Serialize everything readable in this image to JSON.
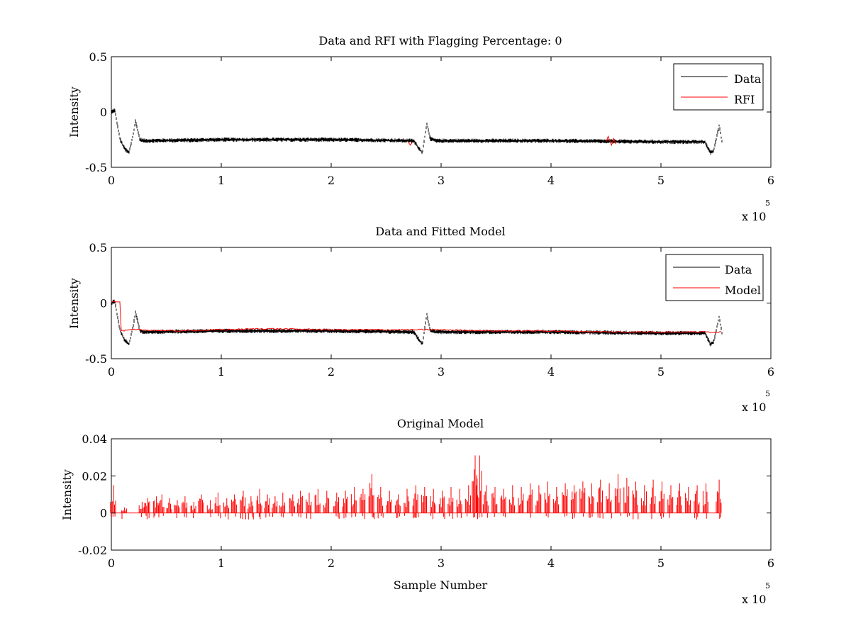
{
  "figure": {
    "background": "#ffffff",
    "data_color": "#000000",
    "model_color": "#ff0000"
  },
  "chart_data": [
    {
      "type": "line",
      "title": "Data and RFI with Flagging Percentage: 0",
      "xlabel": "",
      "ylabel": "Intensity",
      "xlim": [
        0,
        600000
      ],
      "ylim": [
        -0.5,
        0.5
      ],
      "x_ticks": [
        0,
        1,
        2,
        3,
        4,
        5,
        6
      ],
      "y_ticks": [
        "-0.5",
        "0",
        "0.5"
      ],
      "x_multiplier": {
        "base": "x 10",
        "exponent": "5"
      },
      "grid": false,
      "legend": {
        "placement": "top-right",
        "entries": [
          {
            "label": "Data",
            "color": "#000000"
          },
          {
            "label": "RFI",
            "color": "#ff0000"
          }
        ]
      },
      "series": [
        {
          "name": "Data",
          "color": "#000000",
          "x": [
            0,
            3000,
            8000,
            12000,
            16000,
            20000,
            22000,
            26000,
            30000,
            100000,
            200000,
            275000,
            280000,
            283000,
            287000,
            290000,
            295000,
            400000,
            500000,
            540000,
            545000,
            548000,
            553000,
            556000
          ],
          "y": [
            0,
            0.02,
            -0.25,
            -0.33,
            -0.37,
            -0.2,
            -0.08,
            -0.25,
            -0.26,
            -0.25,
            -0.25,
            -0.26,
            -0.33,
            -0.37,
            -0.1,
            -0.24,
            -0.26,
            -0.26,
            -0.27,
            -0.27,
            -0.37,
            -0.35,
            -0.12,
            -0.3
          ],
          "noise_band": 0.04
        },
        {
          "name": "RFI",
          "color": "#ff0000",
          "x": [
            270000,
            272000,
            274000,
            450000,
            452000,
            455000,
            457000,
            459000
          ],
          "y": [
            -0.27,
            -0.3,
            -0.27,
            -0.27,
            -0.22,
            -0.3,
            -0.24,
            -0.29
          ]
        }
      ]
    },
    {
      "type": "line",
      "title": "Data and Fitted Model",
      "xlabel": "",
      "ylabel": "Intensity",
      "xlim": [
        0,
        600000
      ],
      "ylim": [
        -0.5,
        0.5
      ],
      "x_ticks": [
        0,
        1,
        2,
        3,
        4,
        5,
        6
      ],
      "y_ticks": [
        "-0.5",
        "0",
        "0.5"
      ],
      "x_multiplier": {
        "base": "x 10",
        "exponent": "5"
      },
      "grid": false,
      "legend": {
        "placement": "top-right",
        "entries": [
          {
            "label": "Data",
            "color": "#000000"
          },
          {
            "label": "Model",
            "color": "#ff0000"
          }
        ]
      },
      "series": [
        {
          "name": "Data",
          "color": "#000000",
          "x": [
            0,
            3000,
            8000,
            12000,
            16000,
            20000,
            22000,
            26000,
            30000,
            100000,
            200000,
            275000,
            280000,
            283000,
            287000,
            290000,
            295000,
            400000,
            500000,
            540000,
            545000,
            548000,
            553000,
            556000
          ],
          "y": [
            0,
            0.02,
            -0.25,
            -0.33,
            -0.37,
            -0.2,
            -0.08,
            -0.25,
            -0.26,
            -0.25,
            -0.25,
            -0.26,
            -0.33,
            -0.37,
            -0.1,
            -0.24,
            -0.26,
            -0.26,
            -0.27,
            -0.27,
            -0.37,
            -0.35,
            -0.12,
            -0.3
          ],
          "noise_band": 0.04
        },
        {
          "name": "Model",
          "color": "#ff0000",
          "x": [
            0,
            1500,
            3000,
            8000,
            8500,
            9000,
            20000,
            60000,
            100000,
            140000,
            200000,
            280000,
            300000,
            350000,
            400000,
            450000,
            500000,
            556000
          ],
          "y": [
            0,
            0.02,
            0.01,
            0.01,
            -0.24,
            -0.25,
            -0.24,
            -0.25,
            -0.24,
            -0.23,
            -0.24,
            -0.24,
            -0.24,
            -0.25,
            -0.25,
            -0.26,
            -0.26,
            -0.26
          ]
        }
      ]
    },
    {
      "type": "line",
      "title": "Original Model",
      "xlabel": "Sample Number",
      "ylabel": "Intensity",
      "xlim": [
        0,
        600000
      ],
      "ylim": [
        -0.02,
        0.04
      ],
      "x_ticks": [
        0,
        1,
        2,
        3,
        4,
        5,
        6
      ],
      "y_ticks": [
        "-0.02",
        "0",
        "0.02",
        "0.04"
      ],
      "x_multiplier": {
        "base": "x 10",
        "exponent": "5"
      },
      "grid": false,
      "series": [
        {
          "name": "Original Model",
          "color": "#ff0000",
          "baseline": 0,
          "spikes": {
            "x": [
              2000,
              12000,
              28000,
              33000,
              41000,
              46000,
              53000,
              60000,
              67000,
              75000,
              82000,
              90000,
              97000,
              105000,
              112000,
              120000,
              127000,
              135000,
              142000,
              149000,
              156000,
              165000,
              172000,
              180000,
              188000,
              196000,
              205000,
              213000,
              221000,
              229000,
              237000,
              245000,
              253000,
              261000,
              269000,
              277000,
              285000,
              293000,
              301000,
              309000,
              317000,
              325000,
              331000,
              335000,
              341000,
              349000,
              357000,
              365000,
              373000,
              381000,
              389000,
              397000,
              405000,
              413000,
              421000,
              429000,
              437000,
              445000,
              453000,
              461000,
              469000,
              477000,
              485000,
              493000,
              501000,
              509000,
              517000,
              525000,
              533000,
              541000,
              553000
            ],
            "y": [
              0.015,
              0.003,
              0.006,
              0.008,
              0.009,
              0.01,
              0.008,
              0.007,
              0.009,
              0.006,
              0.01,
              0.007,
              0.011,
              0.008,
              0.01,
              0.012,
              0.009,
              0.013,
              0.01,
              0.009,
              0.011,
              0.01,
              0.012,
              0.011,
              0.013,
              0.012,
              0.011,
              0.012,
              0.014,
              0.013,
              0.021,
              0.014,
              0.012,
              0.01,
              0.013,
              0.015,
              0.014,
              0.013,
              0.012,
              0.014,
              0.013,
              0.015,
              0.031,
              0.031,
              0.015,
              0.014,
              0.013,
              0.015,
              0.014,
              0.016,
              0.015,
              0.017,
              0.014,
              0.016,
              0.015,
              0.017,
              0.016,
              0.018,
              0.016,
              0.021,
              0.019,
              0.017,
              0.015,
              0.018,
              0.017,
              0.015,
              0.016,
              0.014,
              0.015,
              0.016,
              0.018
            ]
          },
          "negative_dips": [
            -0.003,
            -0.004,
            -0.003,
            -0.002,
            -0.002
          ]
        }
      ]
    }
  ]
}
